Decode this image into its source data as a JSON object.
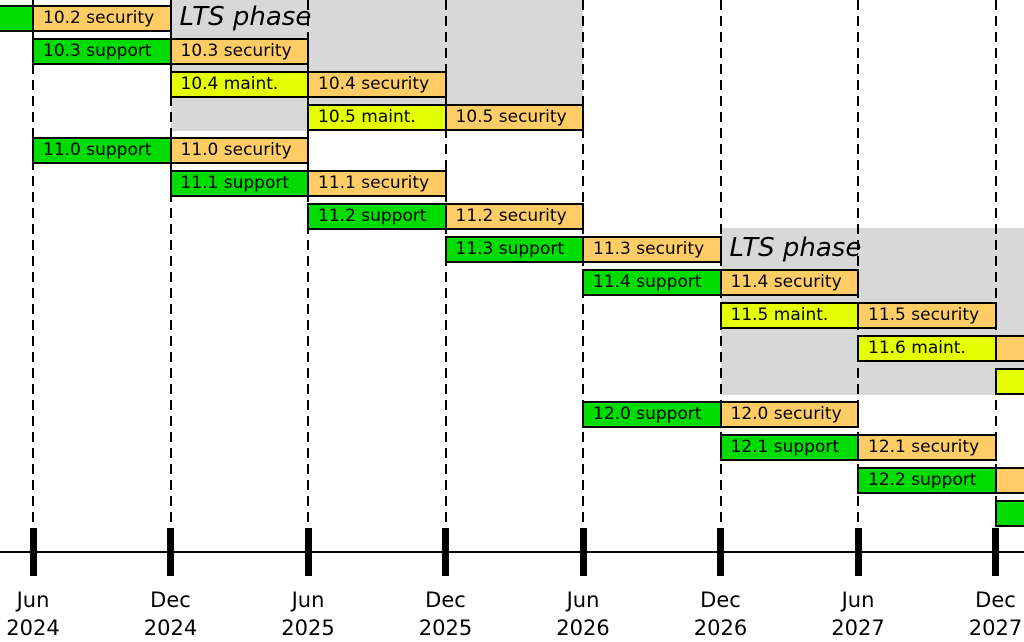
{
  "chart_data": {
    "type": "gantt",
    "title": "",
    "time_unit": "half-year",
    "x_range": [
      "Jun 2024",
      "Dec 2027"
    ],
    "grid": "dashed-vertical-at-ticks",
    "phase_colors": {
      "support": "#00DB00",
      "maint": "#E3FF00",
      "security": "#FFCC66",
      "lts_region": "#D8D8D8",
      "border": "#000000"
    },
    "axis": {
      "ticks": [
        {
          "month": "Jun",
          "year": "2024"
        },
        {
          "month": "Dec",
          "year": "2024"
        },
        {
          "month": "Jun",
          "year": "2025"
        },
        {
          "month": "Dec",
          "year": "2025"
        },
        {
          "month": "Jun",
          "year": "2026"
        },
        {
          "month": "Dec",
          "year": "2026"
        },
        {
          "month": "Jun",
          "year": "2027"
        },
        {
          "month": "Dec",
          "year": "2027"
        }
      ]
    },
    "lts_regions": [
      {
        "label": "LTS phase",
        "from": 1,
        "to": 4,
        "row_start": 1,
        "row_end": 4,
        "label_row": 1
      },
      {
        "label": "LTS phase",
        "from": 5,
        "to": 8.1,
        "row_start": 8,
        "row_end": 12,
        "label_row": 8
      }
    ],
    "rows": [
      {
        "row": 1,
        "segments": [
          {
            "label": "",
            "phase": "support",
            "from": -0.25,
            "to": 0
          },
          {
            "label": "10.2 security",
            "phase": "security",
            "from": 0,
            "to": 1
          }
        ]
      },
      {
        "row": 2,
        "segments": [
          {
            "label": "10.3 support",
            "phase": "support",
            "from": 0,
            "to": 1
          },
          {
            "label": "10.3 security",
            "phase": "security",
            "from": 1,
            "to": 2
          }
        ]
      },
      {
        "row": 3,
        "segments": [
          {
            "label": "10.4 maint.",
            "phase": "maint",
            "from": 1,
            "to": 2
          },
          {
            "label": "10.4 security",
            "phase": "security",
            "from": 2,
            "to": 3
          }
        ]
      },
      {
        "row": 4,
        "segments": [
          {
            "label": "10.5 maint.",
            "phase": "maint",
            "from": 2,
            "to": 3
          },
          {
            "label": "10.5 security",
            "phase": "security",
            "from": 3,
            "to": 4
          }
        ]
      },
      {
        "row": 5,
        "segments": [
          {
            "label": "11.0 support",
            "phase": "support",
            "from": 0,
            "to": 1
          },
          {
            "label": "11.0 security",
            "phase": "security",
            "from": 1,
            "to": 2
          }
        ]
      },
      {
        "row": 6,
        "segments": [
          {
            "label": "11.1 support",
            "phase": "support",
            "from": 1,
            "to": 2
          },
          {
            "label": "11.1 security",
            "phase": "security",
            "from": 2,
            "to": 3
          }
        ]
      },
      {
        "row": 7,
        "segments": [
          {
            "label": "11.2 support",
            "phase": "support",
            "from": 2,
            "to": 3
          },
          {
            "label": "11.2 security",
            "phase": "security",
            "from": 3,
            "to": 4
          }
        ]
      },
      {
        "row": 8,
        "segments": [
          {
            "label": "11.3 support",
            "phase": "support",
            "from": 3,
            "to": 4
          },
          {
            "label": "11.3 security",
            "phase": "security",
            "from": 4,
            "to": 5
          }
        ]
      },
      {
        "row": 9,
        "segments": [
          {
            "label": "11.4 support",
            "phase": "support",
            "from": 4,
            "to": 5
          },
          {
            "label": "11.4 security",
            "phase": "security",
            "from": 5,
            "to": 6
          }
        ]
      },
      {
        "row": 10,
        "segments": [
          {
            "label": "11.5 maint.",
            "phase": "maint",
            "from": 5,
            "to": 6
          },
          {
            "label": "11.5 security",
            "phase": "security",
            "from": 6,
            "to": 7
          }
        ]
      },
      {
        "row": 11,
        "segments": [
          {
            "label": "11.6 maint.",
            "phase": "maint",
            "from": 6,
            "to": 7
          },
          {
            "label": "",
            "phase": "security",
            "from": 7,
            "to": 7.3
          }
        ]
      },
      {
        "row": 12,
        "segments": [
          {
            "label": "",
            "phase": "maint",
            "from": 7,
            "to": 7.3
          }
        ]
      },
      {
        "row": 13,
        "segments": [
          {
            "label": "12.0 support",
            "phase": "support",
            "from": 4,
            "to": 5
          },
          {
            "label": "12.0 security",
            "phase": "security",
            "from": 5,
            "to": 6
          }
        ]
      },
      {
        "row": 14,
        "segments": [
          {
            "label": "12.1 support",
            "phase": "support",
            "from": 5,
            "to": 6
          },
          {
            "label": "12.1 security",
            "phase": "security",
            "from": 6,
            "to": 7
          }
        ]
      },
      {
        "row": 15,
        "segments": [
          {
            "label": "12.2 support",
            "phase": "support",
            "from": 6,
            "to": 7
          },
          {
            "label": "",
            "phase": "security",
            "from": 7,
            "to": 7.3
          }
        ]
      },
      {
        "row": 16,
        "segments": [
          {
            "label": "",
            "phase": "support",
            "from": 7,
            "to": 7.3
          }
        ]
      }
    ]
  }
}
